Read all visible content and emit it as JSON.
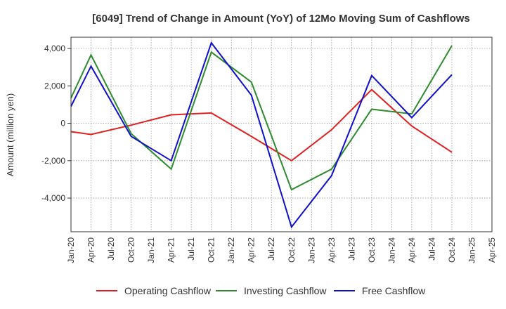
{
  "chart_data": {
    "type": "line",
    "title": "[6049]  Trend of Change in Amount (YoY) of 12Mo Moving Sum of Cashflows",
    "xlabel": "",
    "ylabel": "Amount (million yen)",
    "ylim": [
      -5800,
      4600
    ],
    "yticks": [
      4000,
      2000,
      0,
      -2000,
      -4000
    ],
    "ytick_labels": [
      "4,000",
      "2,000",
      "0",
      "-2,000",
      "-4,000"
    ],
    "categories": [
      "Jan-20",
      "Apr-20",
      "Jul-20",
      "Oct-20",
      "Jan-21",
      "Apr-21",
      "Jul-21",
      "Oct-21",
      "Jan-22",
      "Apr-22",
      "Jul-22",
      "Oct-22",
      "Jan-23",
      "Apr-23",
      "Jul-23",
      "Oct-23",
      "Jan-24",
      "Apr-24",
      "Jul-24",
      "Oct-24",
      "Jan-25",
      "Apr-25"
    ],
    "grid": true,
    "legend_position": "bottom",
    "series": [
      {
        "name": "Operating Cashflow",
        "color": "#e02020",
        "values": [
          -450,
          -600,
          null,
          -100,
          null,
          450,
          null,
          550,
          null,
          -700,
          null,
          -2000,
          null,
          -350,
          null,
          1800,
          null,
          -150,
          null,
          -1550,
          null,
          null
        ]
      },
      {
        "name": "Investing Cashflow",
        "color": "#2e8b2e",
        "values": [
          1350,
          3650,
          null,
          -550,
          null,
          -2450,
          null,
          3800,
          null,
          2200,
          null,
          -3550,
          null,
          -2450,
          null,
          750,
          null,
          500,
          null,
          4150,
          null,
          null
        ]
      },
      {
        "name": "Free Cashflow",
        "color": "#1010cc",
        "values": [
          900,
          3050,
          null,
          -700,
          null,
          -2000,
          null,
          4300,
          null,
          1500,
          null,
          -5550,
          null,
          -2800,
          null,
          2550,
          null,
          300,
          null,
          2600,
          null,
          null
        ]
      }
    ]
  }
}
